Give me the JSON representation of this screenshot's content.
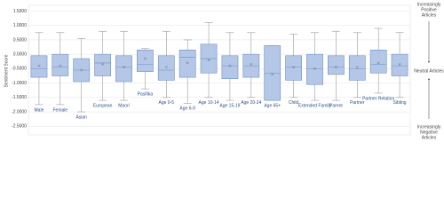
{
  "chart_data": {
    "type": "box",
    "y_label": "Sentiment Score",
    "categories": [
      "Male",
      "Female",
      "Asian",
      "European",
      "Maori",
      "Pasifika",
      "Age 0-5",
      "Age 6-9",
      "Age 10-14",
      "Age 15-19",
      "Age 20-24",
      "Age 65+",
      "Child",
      "Extended Family",
      "Parent",
      "Partner",
      "Partner Relation",
      "Sibling"
    ],
    "boxes": [
      {
        "low": -1.75,
        "q1": -0.8,
        "median": -0.5,
        "q3": -0.05,
        "high": 0.75,
        "mean": -0.4
      },
      {
        "low": -1.75,
        "q1": -0.75,
        "median": -0.45,
        "q3": 0.0,
        "high": 0.75,
        "mean": -0.4
      },
      {
        "low": -2.0,
        "q1": -0.95,
        "median": -0.55,
        "q3": -0.15,
        "high": 0.55,
        "mean": -0.55
      },
      {
        "low": -1.6,
        "q1": -0.75,
        "median": -0.3,
        "q3": 0.0,
        "high": 0.8,
        "mean": -0.35
      },
      {
        "low": -1.6,
        "q1": -0.95,
        "median": -0.45,
        "q3": -0.05,
        "high": 0.8,
        "mean": -0.45
      },
      {
        "low": -1.2,
        "q1": -0.6,
        "median": -0.35,
        "q3": 0.15,
        "high": 0.2,
        "mean": -0.15
      },
      {
        "low": -1.5,
        "q1": -0.9,
        "median": -0.55,
        "q3": -0.05,
        "high": 0.8,
        "mean": -0.45
      },
      {
        "low": -1.7,
        "q1": -0.8,
        "median": -0.1,
        "q3": 0.15,
        "high": 0.5,
        "mean": -0.3
      },
      {
        "low": -1.5,
        "q1": -0.65,
        "median": -0.15,
        "q3": 0.35,
        "high": 1.1,
        "mean": -0.2
      },
      {
        "low": -1.6,
        "q1": -0.85,
        "median": -0.4,
        "q3": -0.05,
        "high": 0.75,
        "mean": -0.4
      },
      {
        "low": -1.5,
        "q1": -0.8,
        "median": -0.4,
        "q3": 0.0,
        "high": 0.75,
        "mean": -0.35
      },
      {
        "low": -1.6,
        "q1": -1.6,
        "median": -0.65,
        "q3": 0.3,
        "high": 0.3,
        "mean": -0.7
      },
      {
        "low": -1.5,
        "q1": -0.9,
        "median": -0.45,
        "q3": -0.05,
        "high": 0.7,
        "mean": -0.45
      },
      {
        "low": -1.6,
        "q1": -1.05,
        "median": -0.5,
        "q3": 0.0,
        "high": 0.75,
        "mean": -0.5
      },
      {
        "low": -1.6,
        "q1": -0.7,
        "median": -0.45,
        "q3": -0.05,
        "high": 0.8,
        "mean": -0.45
      },
      {
        "low": -1.5,
        "q1": -0.9,
        "median": -0.5,
        "q3": -0.05,
        "high": 0.75,
        "mean": -0.45
      },
      {
        "low": -1.35,
        "q1": -0.65,
        "median": -0.35,
        "q3": 0.15,
        "high": 0.9,
        "mean": -0.3
      },
      {
        "low": -1.5,
        "q1": -0.75,
        "median": -0.4,
        "q3": 0.0,
        "high": 0.75,
        "mean": -0.35
      }
    ],
    "color": "#b4c7e7",
    "edge_color": "#6f8fc7",
    "ylim": [
      -2.8,
      1.7
    ],
    "yticks": [
      {
        "value": -2.5,
        "label": "-2.5000"
      },
      {
        "value": -2,
        "label": "-2.0000"
      },
      {
        "value": -1.5,
        "label": "-1.5000"
      },
      {
        "value": -1,
        "label": "-1.0000"
      },
      {
        "value": -0.5,
        "label": "-0.5000"
      },
      {
        "value": 0,
        "label": "0.0000"
      },
      {
        "value": 0.5,
        "label": "0.5000"
      },
      {
        "value": 1,
        "label": "1.0000"
      },
      {
        "value": 1.5,
        "label": "1.5000"
      }
    ],
    "grid": true,
    "annotations": {
      "top": [
        "Increasingly",
        "Positive",
        "Articles"
      ],
      "middle": [
        "Neutral Articles"
      ],
      "bottom": [
        "Increasingly",
        "Negative",
        "Articles"
      ]
    }
  }
}
